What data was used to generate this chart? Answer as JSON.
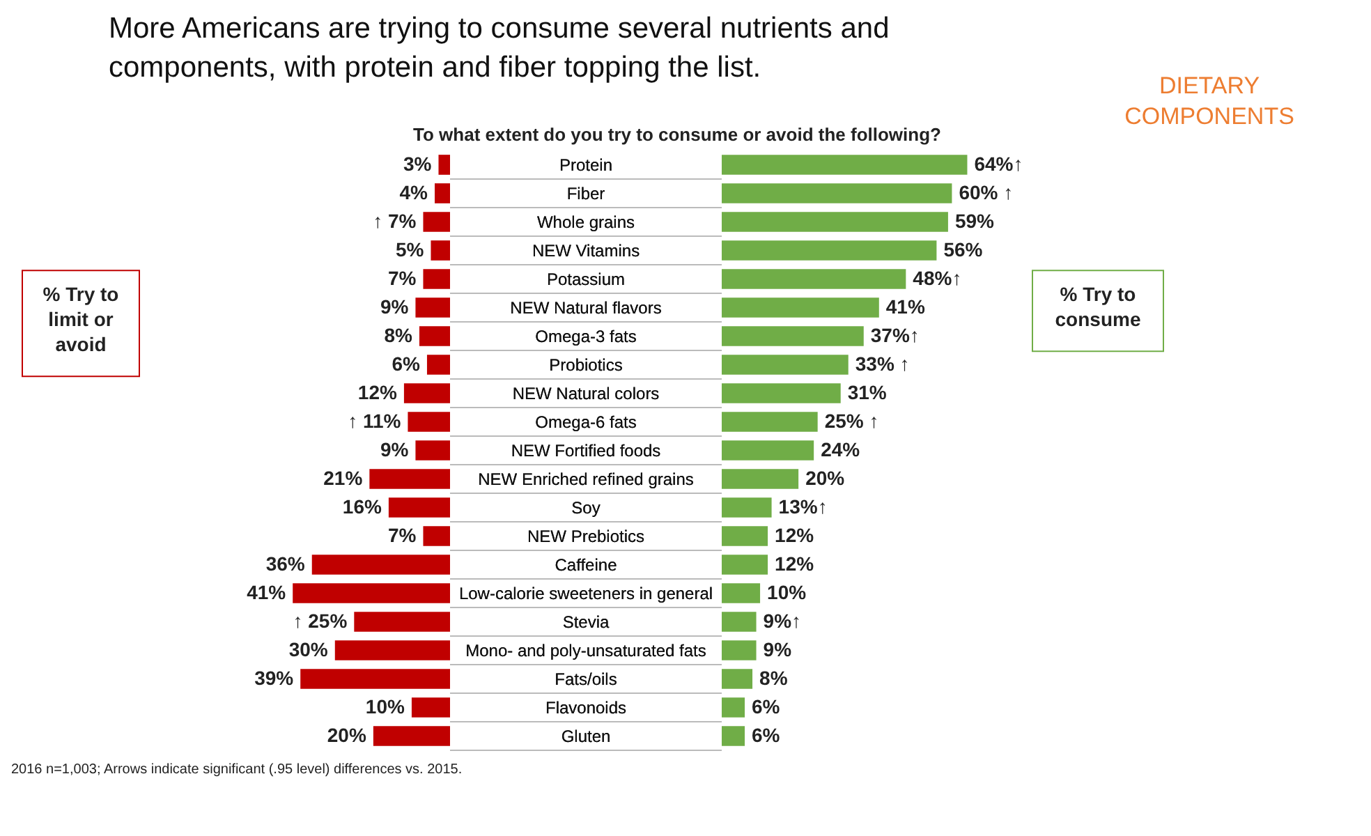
{
  "chart_data": [
    {
      "type": "bar",
      "orientation": "horizontal",
      "title": "More Americans are trying to consume several nutrients and components, with protein and fiber topping the list.",
      "subtitle": "To what extent do you try to consume or avoid the following?",
      "categories": [
        "Protein",
        "Fiber",
        "Whole grains",
        "NEW Vitamins",
        "Potassium",
        "NEW Natural flavors",
        "Omega-3 fats",
        "Probiotics",
        "NEW Natural colors",
        "Omega-6 fats",
        "NEW Fortified foods",
        "NEW Enriched refined grains",
        "Soy",
        "NEW Prebiotics",
        "Caffeine",
        "Low-calorie sweeteners in general",
        "Stevia",
        "Mono- and poly-unsaturated fats",
        "Fats/oils",
        "Flavonoids",
        "Gluten"
      ],
      "series": [
        {
          "name": "% Try to limit or avoid",
          "color": "#c00000",
          "values": [
            3,
            4,
            7,
            5,
            7,
            9,
            8,
            6,
            12,
            11,
            9,
            21,
            16,
            7,
            36,
            41,
            25,
            30,
            39,
            10,
            20
          ],
          "value_labels": [
            "3%",
            "4%",
            "↑ 7%",
            "5%",
            "7%",
            "9%",
            "8%",
            "6%",
            "12%",
            "↑ 11%",
            "9%",
            "21%",
            "16%",
            "7%",
            "36%",
            "41%",
            "↑ 25%",
            "30%",
            "39%",
            "10%",
            "20%"
          ]
        }
      ],
      "annotations": [
        "DIETARY COMPONENTS",
        "2016 n=1,003; Arrows indicate significant (.95 level) differences vs. 2015."
      ],
      "legend": false
    },
    {
      "type": "bar",
      "orientation": "horizontal",
      "categories": [
        "Protein",
        "Fiber",
        "Whole grains",
        "NEW Vitamins",
        "Potassium",
        "NEW Natural flavors",
        "Omega-3 fats",
        "Probiotics",
        "NEW Natural colors",
        "Omega-6 fats",
        "NEW Fortified foods",
        "NEW Enriched refined grains",
        "Soy",
        "NEW Prebiotics",
        "Caffeine",
        "Low-calorie sweeteners in general",
        "Stevia",
        "Mono- and poly-unsaturated fats",
        "Fats/oils",
        "Flavonoids",
        "Gluten"
      ],
      "tick_labels": false,
      "series": [
        {
          "name": "% Try to consume",
          "color": "#70ad47",
          "values": [
            64,
            60,
            59,
            56,
            48,
            41,
            37,
            33,
            31,
            25,
            24,
            20,
            13,
            12,
            12,
            10,
            9,
            9,
            8,
            6,
            6
          ],
          "value_labels": [
            "64%↑",
            "60% ↑",
            "59%",
            "56%",
            "48%↑",
            "41%",
            "37%↑",
            "33% ↑",
            "31%",
            "25% ↑",
            "24%",
            "20%",
            "13%↑",
            "12%",
            "12%",
            "10%",
            "9%↑",
            "9%",
            "8%",
            "6%",
            "6%"
          ]
        }
      ],
      "legend": false
    }
  ]
}
